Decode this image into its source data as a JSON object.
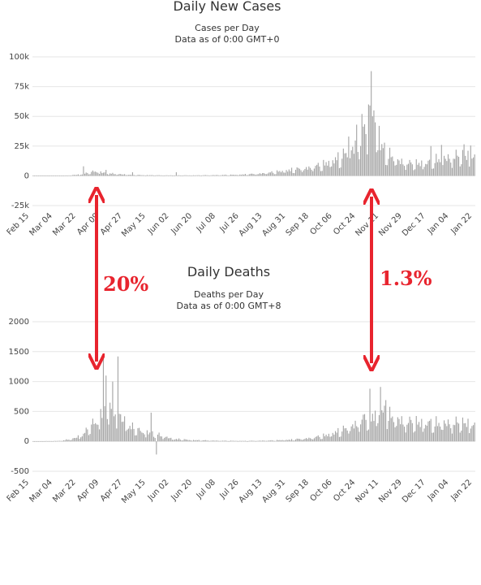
{
  "chart_data": [
    {
      "type": "bar",
      "title": "Daily New Cases",
      "subtitle": "Cases per Day",
      "note": "Data as of 0:00 GMT+0",
      "y_ticks": [
        "100k",
        "75k",
        "50k",
        "25k",
        "0",
        "-25k"
      ],
      "ylim": [
        -25000,
        100000
      ],
      "x_ticks": [
        "Feb 15",
        "Mar 04",
        "Mar 22",
        "Apr 09",
        "Apr 27",
        "May 15",
        "Jun 02",
        "Jun 20",
        "Jul 08",
        "Jul 26",
        "Aug 13",
        "Aug 31",
        "Sep 18",
        "Oct 06",
        "Oct 24",
        "Nov 11",
        "Nov 29",
        "Dec 17",
        "Jan 04",
        "Jan 22"
      ],
      "grid": true,
      "bar_color": "#a6a6a6",
      "series_points": [
        [
          0,
          0
        ],
        [
          15,
          100
        ],
        [
          25,
          300
        ],
        [
          35,
          1500
        ],
        [
          42,
          3500
        ],
        [
          47,
          5500
        ],
        [
          52,
          4000
        ],
        [
          60,
          2500
        ],
        [
          70,
          1500
        ],
        [
          80,
          900
        ],
        [
          95,
          600
        ],
        [
          110,
          500
        ],
        [
          125,
          600
        ],
        [
          140,
          900
        ],
        [
          155,
          1300
        ],
        [
          170,
          2500
        ],
        [
          180,
          4000
        ],
        [
          190,
          6000
        ],
        [
          200,
          8000
        ],
        [
          210,
          10000
        ],
        [
          218,
          13000
        ],
        [
          225,
          17000
        ],
        [
          232,
          22000
        ],
        [
          240,
          30000
        ],
        [
          246,
          40000
        ],
        [
          252,
          55000
        ],
        [
          256,
          65000
        ],
        [
          259,
          48000
        ],
        [
          263,
          33000
        ],
        [
          268,
          25000
        ],
        [
          275,
          18000
        ],
        [
          285,
          14000
        ],
        [
          295,
          15000
        ],
        [
          305,
          19000
        ],
        [
          320,
          23000
        ],
        [
          333,
          24000
        ]
      ],
      "spikes": [
        [
          2,
          0
        ],
        [
          38,
          8000
        ],
        [
          55,
          5000
        ],
        [
          75,
          3000
        ],
        [
          108,
          3000
        ],
        [
          238,
          33000
        ],
        [
          244,
          43000
        ],
        [
          248,
          52000
        ],
        [
          253,
          60000
        ],
        [
          255,
          88000
        ],
        [
          257,
          55000
        ],
        [
          261,
          42000
        ],
        [
          300,
          25000
        ],
        [
          308,
          26000
        ],
        [
          325,
          26500
        ],
        [
          330,
          25500
        ]
      ]
    },
    {
      "type": "bar",
      "title": "Daily Deaths",
      "subtitle": "Deaths per Day",
      "note": "Data as of 0:00 GMT+8",
      "y_ticks": [
        "2000",
        "1500",
        "1000",
        "500",
        "0",
        "-500"
      ],
      "ylim": [
        -500,
        2000
      ],
      "x_ticks": [
        "Feb 15",
        "Mar 04",
        "Mar 22",
        "Apr 09",
        "Apr 27",
        "May 15",
        "Jun 02",
        "Jun 20",
        "Jul 08",
        "Jul 26",
        "Aug 13",
        "Aug 31",
        "Sep 18",
        "Oct 06",
        "Oct 24",
        "Nov 11",
        "Nov 29",
        "Dec 17",
        "Jan 04",
        "Jan 22"
      ],
      "grid": true,
      "bar_color": "#a6a6a6",
      "series_points": [
        [
          0,
          0
        ],
        [
          20,
          10
        ],
        [
          30,
          60
        ],
        [
          37,
          150
        ],
        [
          42,
          300
        ],
        [
          48,
          500
        ],
        [
          53,
          700
        ],
        [
          58,
          900
        ],
        [
          63,
          650
        ],
        [
          68,
          500
        ],
        [
          73,
          350
        ],
        [
          80,
          250
        ],
        [
          88,
          200
        ],
        [
          95,
          150
        ],
        [
          105,
          60
        ],
        [
          120,
          30
        ],
        [
          140,
          15
        ],
        [
          160,
          10
        ],
        [
          180,
          20
        ],
        [
          195,
          40
        ],
        [
          210,
          80
        ],
        [
          222,
          150
        ],
        [
          232,
          250
        ],
        [
          240,
          350
        ],
        [
          248,
          500
        ],
        [
          256,
          600
        ],
        [
          264,
          650
        ],
        [
          272,
          550
        ],
        [
          282,
          450
        ],
        [
          300,
          420
        ],
        [
          320,
          430
        ],
        [
          333,
          420
        ]
      ],
      "spikes": [
        [
          53,
          1400
        ],
        [
          55,
          1100
        ],
        [
          60,
          1000
        ],
        [
          64,
          1420
        ],
        [
          89,
          480
        ],
        [
          93,
          -220
        ],
        [
          254,
          880
        ],
        [
          262,
          910
        ],
        [
          266,
          690
        ]
      ]
    }
  ],
  "annotations": {
    "left_percent": "20%",
    "right_percent": "1.3%",
    "arrow_color": "#e8242e"
  }
}
